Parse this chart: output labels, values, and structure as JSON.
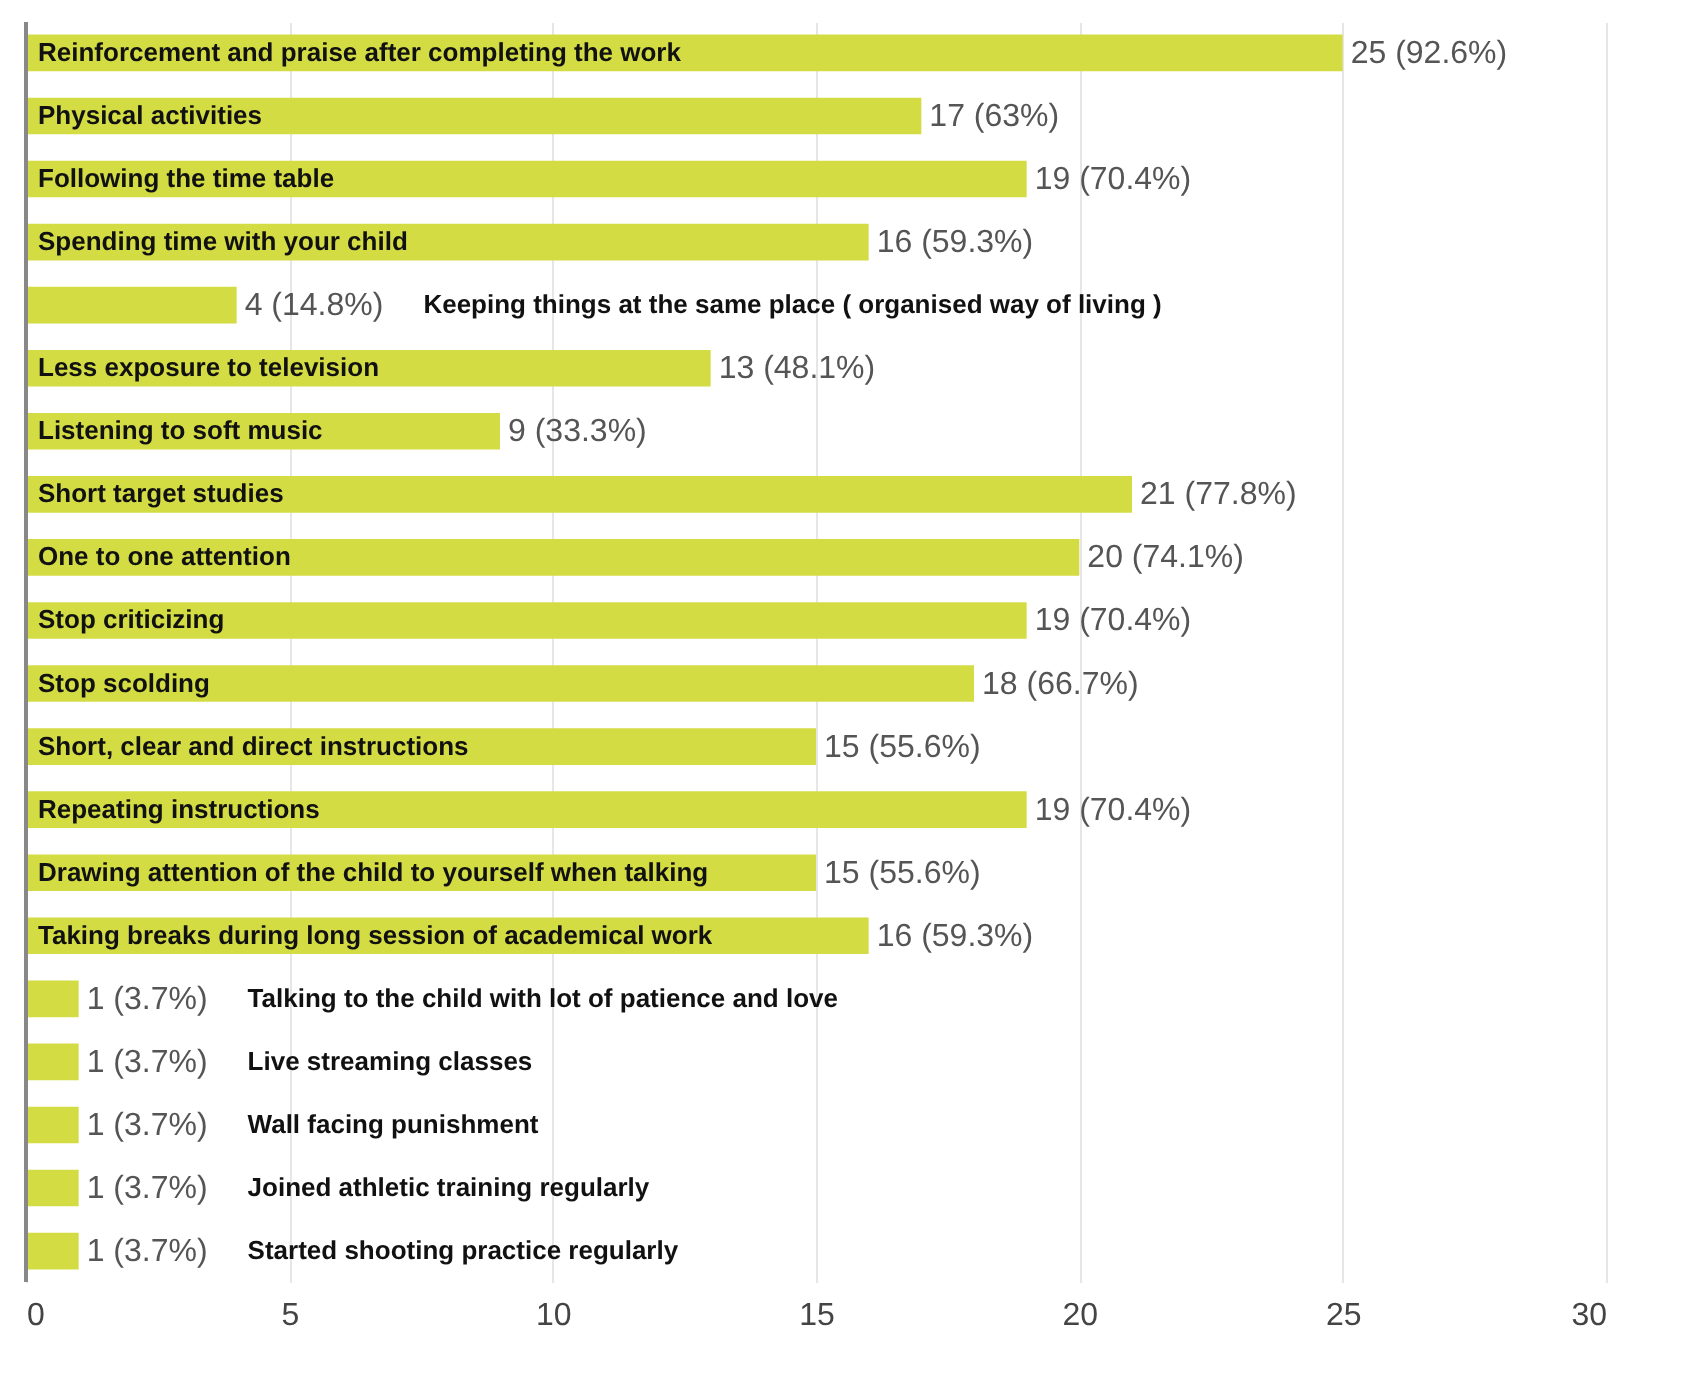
{
  "chart_data": {
    "type": "bar",
    "orientation": "horizontal",
    "categories": [
      "Reinforcement and praise after completing the work",
      "Physical activities",
      "Following the time table",
      "Spending time with your child",
      "Keeping things at the same place ( organised way of living )",
      "Less exposure to television",
      "Listening to soft music",
      "Short target studies",
      "One to one attention",
      "Stop criticizing",
      "Stop scolding",
      "Short, clear and direct instructions",
      "Repeating instructions",
      "Drawing attention of the child to yourself when talking",
      "Taking breaks during long session of academical work",
      "Talking to the child with lot of patience and love",
      "Live streaming classes",
      "Wall facing punishment",
      "Joined athletic training regularly",
      "Started shooting practice regularly"
    ],
    "values": [
      25,
      17,
      19,
      16,
      4,
      13,
      9,
      21,
      20,
      19,
      18,
      15,
      19,
      15,
      16,
      1,
      1,
      1,
      1,
      1
    ],
    "value_labels": [
      "25 (92.6%)",
      "17 (63%)",
      "19 (70.4%)",
      "16 (59.3%)",
      "4 (14.8%)",
      "13 (48.1%)",
      "9 (33.3%)",
      "21 (77.8%)",
      "20 (74.1%)",
      "19 (70.4%)",
      "18 (66.7%)",
      "15 (55.6%)",
      "19 (70.4%)",
      "15 (55.6%)",
      "16 (59.3%)",
      "1 (3.7%)",
      "1 (3.7%)",
      "1 (3.7%)",
      "1 (3.7%)",
      "1 (3.7%)"
    ],
    "color": "#d4dc44",
    "xlim": [
      0,
      30
    ],
    "xticks": [
      0,
      5,
      10,
      15,
      20,
      25,
      30
    ],
    "grid": "x"
  }
}
